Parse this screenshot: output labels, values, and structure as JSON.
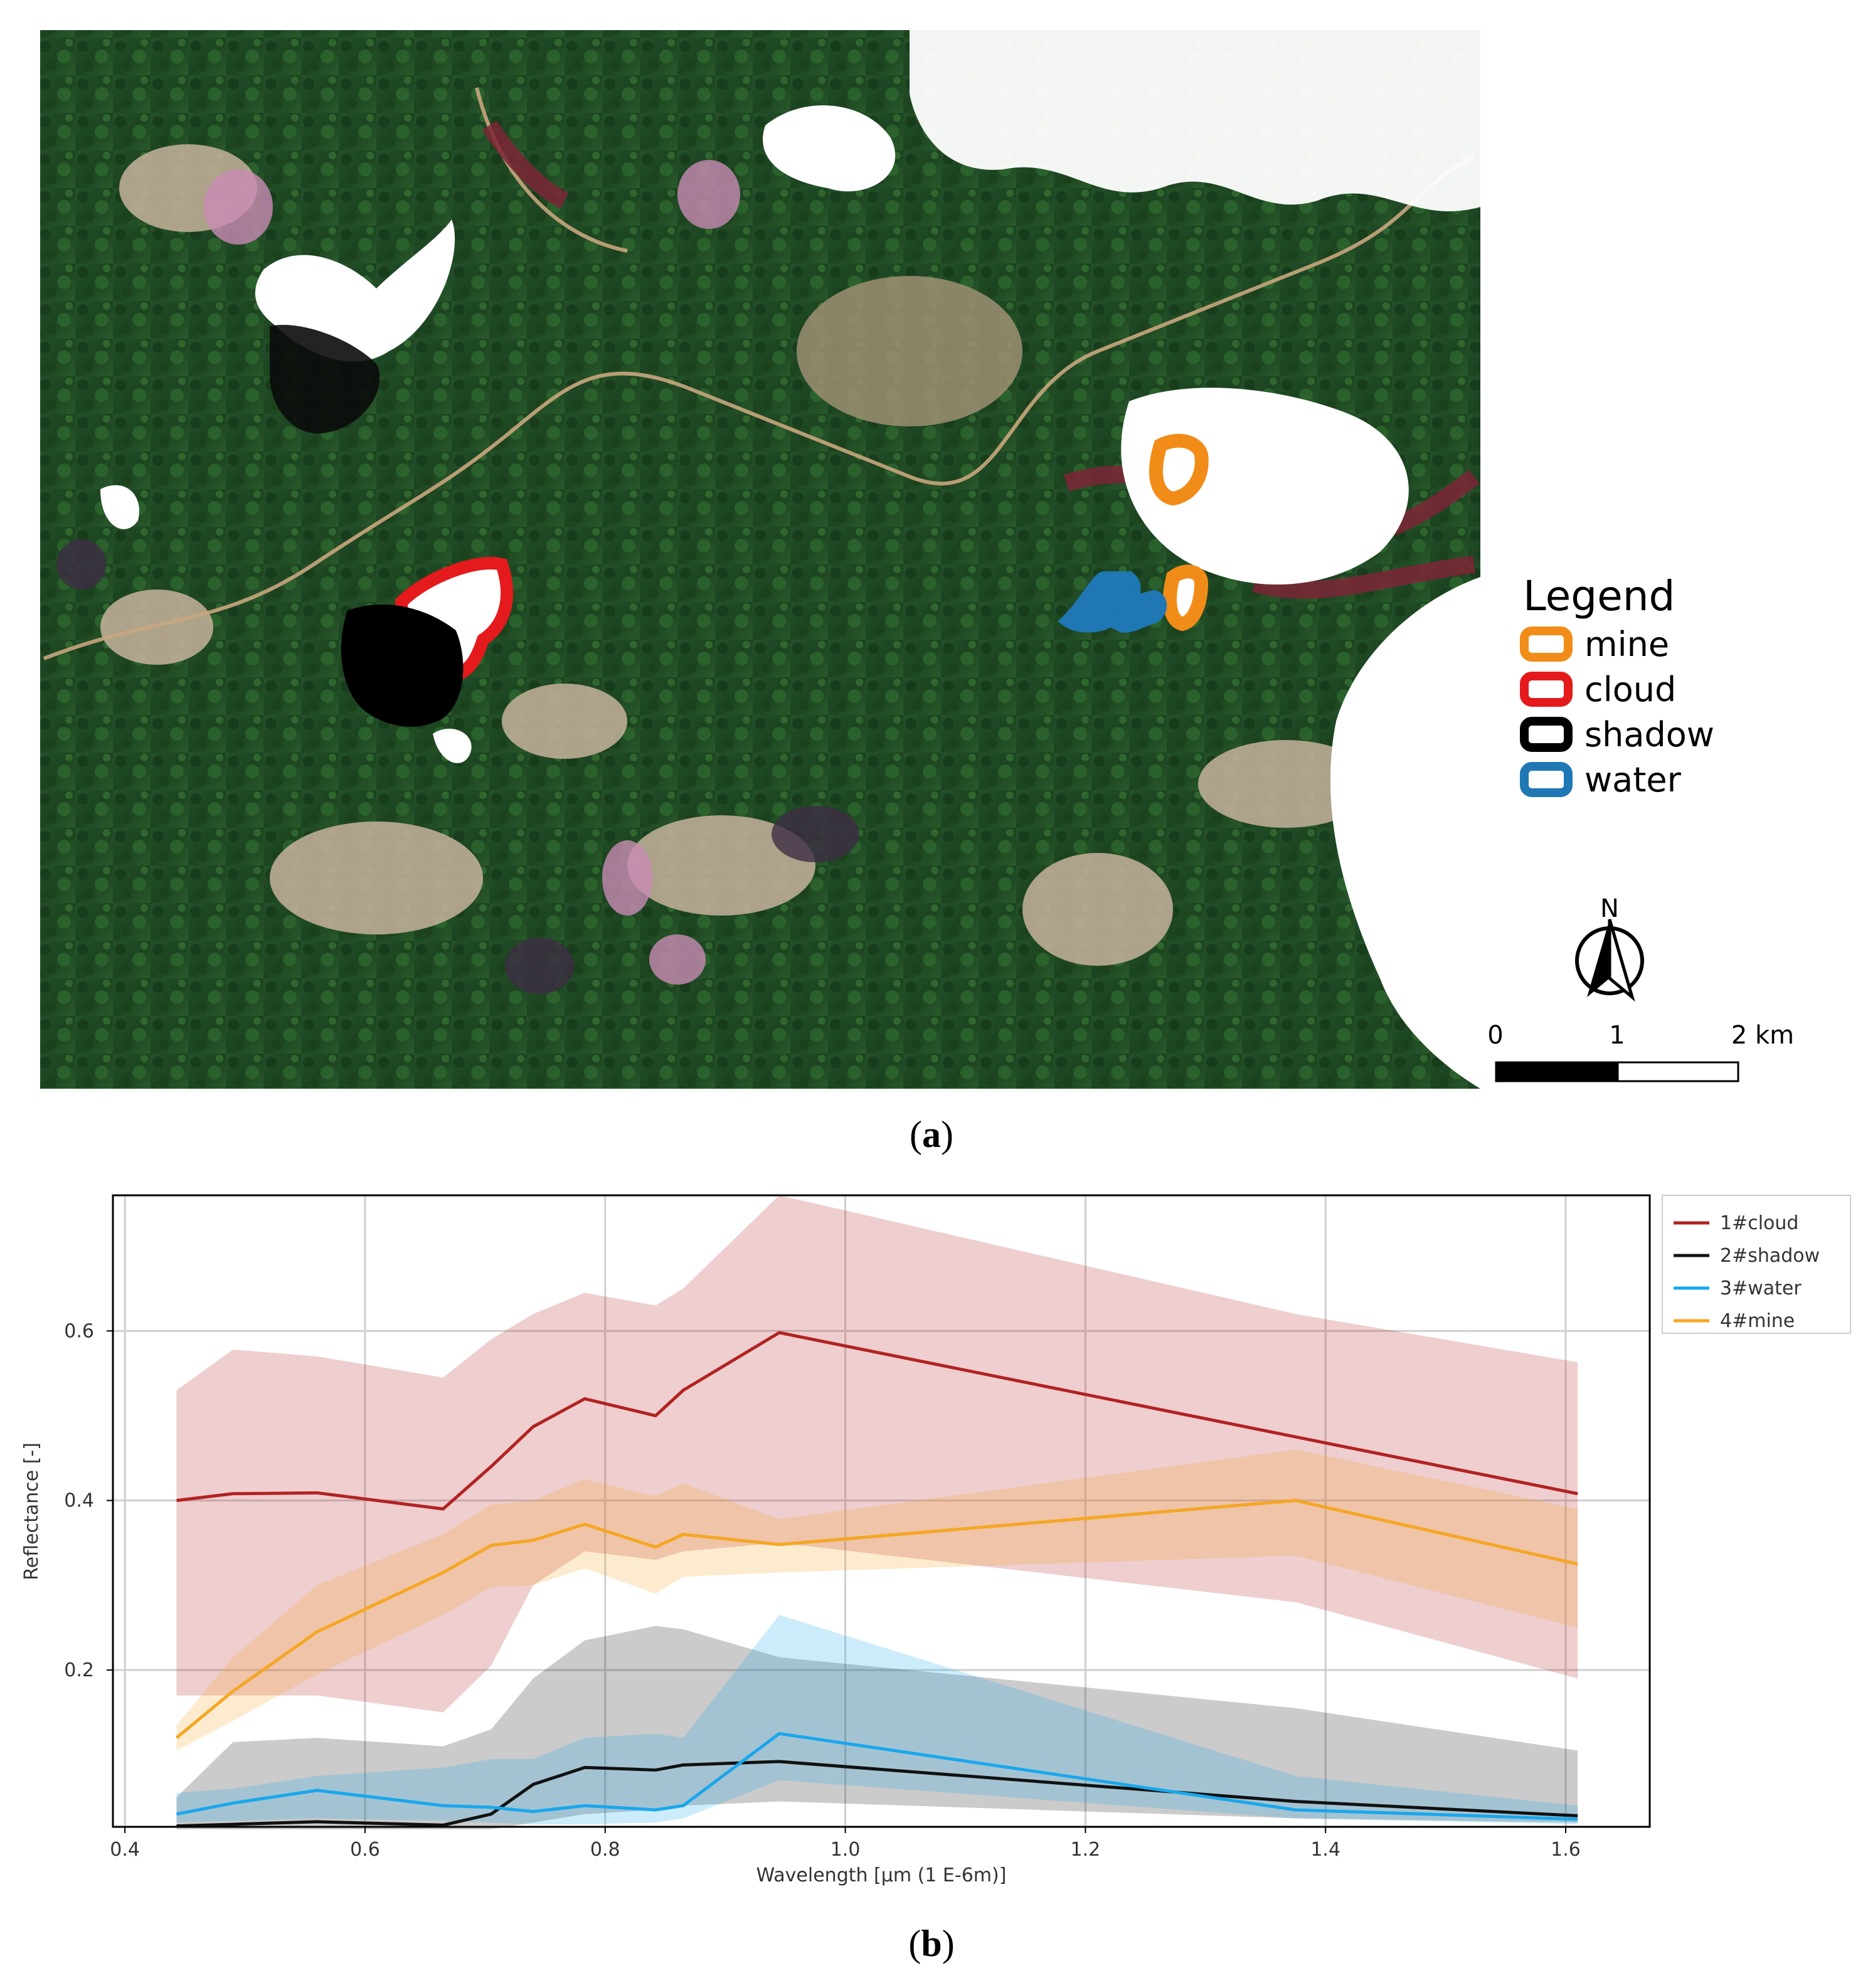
{
  "panel_a": {
    "label_open": "(",
    "label_letter": "a",
    "label_close": ")",
    "legend": {
      "title": "Legend",
      "items": [
        {
          "name": "mine",
          "color": "#f28c18"
        },
        {
          "name": "cloud",
          "color": "#e41a1c"
        },
        {
          "name": "shadow",
          "color": "#000000"
        },
        {
          "name": "water",
          "color": "#1f77b4"
        }
      ]
    },
    "north_arrow": "N",
    "scale_bar": {
      "ticks": [
        "0",
        "1",
        "2 km"
      ]
    },
    "image_description_colors": {
      "forest": "#1f4d1f",
      "cleared": "#c9b6a0",
      "cloud": "#ffffff",
      "river": "#7a2a2a"
    }
  },
  "panel_b": {
    "label_open": "(",
    "label_letter": "b",
    "label_close": ")"
  },
  "chart_data": {
    "type": "line",
    "xlabel": "Wavelength [µm (1 E-6m)]",
    "ylabel": "Reflectance [-]",
    "xlim": [
      0.39,
      1.67
    ],
    "ylim": [
      0.015,
      0.76
    ],
    "xticks": [
      "0.4",
      "0.6",
      "0.8",
      "1.0",
      "1.2",
      "1.4",
      "1.6"
    ],
    "yticks": [
      "0.2",
      "0.4",
      "0.6"
    ],
    "grid": true,
    "legend_position": "top-right, outside plot",
    "x": [
      0.443,
      0.49,
      0.56,
      0.665,
      0.705,
      0.74,
      0.783,
      0.842,
      0.865,
      0.945,
      1.375,
      1.61
    ],
    "series": [
      {
        "name": "1#cloud",
        "color": "#b22222",
        "values": [
          0.4,
          0.408,
          0.409,
          0.39,
          0.44,
          0.487,
          0.52,
          0.5,
          0.53,
          0.598,
          0.475,
          0.408
        ],
        "upper": [
          0.53,
          0.578,
          0.57,
          0.545,
          0.59,
          0.62,
          0.645,
          0.63,
          0.65,
          0.76,
          0.62,
          0.563
        ],
        "lower": [
          0.17,
          0.17,
          0.17,
          0.15,
          0.205,
          0.3,
          0.34,
          0.33,
          0.34,
          0.35,
          0.28,
          0.19
        ]
      },
      {
        "name": "2#shadow",
        "color": "#111111",
        "values": [
          0.016,
          0.018,
          0.021,
          0.017,
          0.03,
          0.065,
          0.085,
          0.082,
          0.088,
          0.092,
          0.045,
          0.028
        ],
        "upper": [
          0.05,
          0.115,
          0.12,
          0.11,
          0.13,
          0.19,
          0.235,
          0.252,
          0.248,
          0.215,
          0.155,
          0.105
        ],
        "lower": [
          0.012,
          0.012,
          0.012,
          0.012,
          0.012,
          0.02,
          0.03,
          0.035,
          0.04,
          0.045,
          0.025,
          0.02
        ]
      },
      {
        "name": "3#water",
        "color": "#1aa7ec",
        "values": [
          0.03,
          0.043,
          0.058,
          0.04,
          0.038,
          0.033,
          0.04,
          0.035,
          0.04,
          0.125,
          0.035,
          0.024
        ],
        "upper": [
          0.055,
          0.06,
          0.075,
          0.085,
          0.095,
          0.095,
          0.12,
          0.125,
          0.12,
          0.265,
          0.075,
          0.04
        ],
        "lower": [
          0.02,
          0.022,
          0.025,
          0.022,
          0.02,
          0.018,
          0.018,
          0.02,
          0.025,
          0.07,
          0.025,
          0.018
        ]
      },
      {
        "name": "4#mine",
        "color": "#f5a623",
        "values": [
          0.12,
          0.175,
          0.245,
          0.315,
          0.347,
          0.353,
          0.372,
          0.345,
          0.36,
          0.348,
          0.4,
          0.325
        ],
        "upper": [
          0.135,
          0.215,
          0.3,
          0.36,
          0.395,
          0.4,
          0.425,
          0.405,
          0.42,
          0.378,
          0.46,
          0.39
        ],
        "lower": [
          0.105,
          0.14,
          0.195,
          0.265,
          0.298,
          0.3,
          0.32,
          0.29,
          0.31,
          0.315,
          0.335,
          0.25
        ]
      }
    ]
  }
}
